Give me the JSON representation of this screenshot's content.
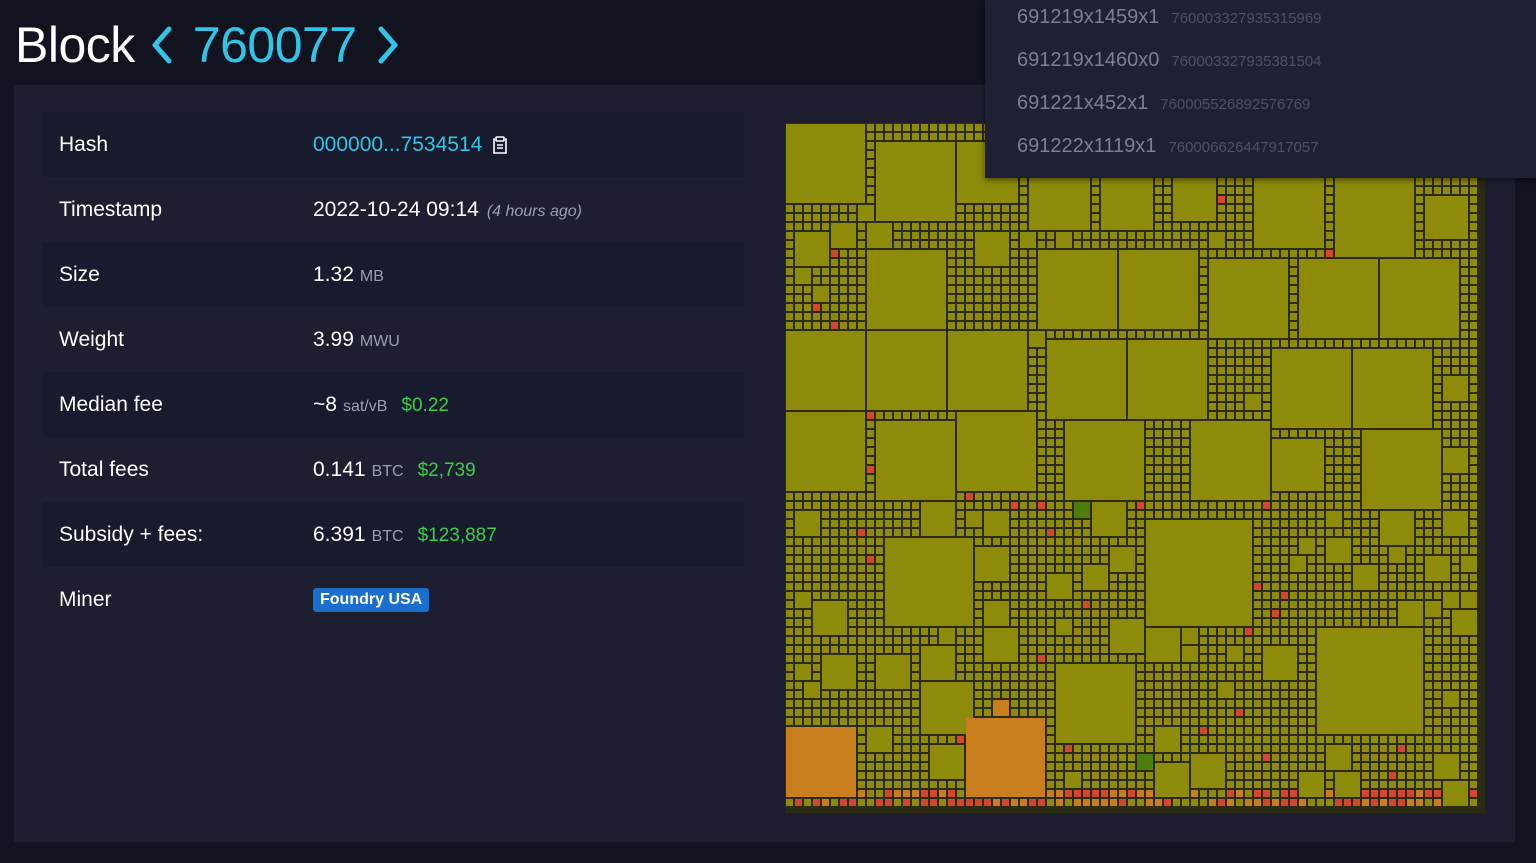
{
  "header": {
    "title_word": "Block",
    "block_number": "760077",
    "prev_icon": "chevron-left-icon",
    "next_icon": "chevron-right-icon"
  },
  "details": {
    "hash": {
      "label": "Hash",
      "value": "000000...7534514",
      "icon": "copy-icon"
    },
    "timestamp": {
      "label": "Timestamp",
      "value": "2022-10-24 09:14",
      "relative": "(4 hours ago)"
    },
    "size": {
      "label": "Size",
      "value": "1.32",
      "unit": "MB"
    },
    "weight": {
      "label": "Weight",
      "value": "3.99",
      "unit": "MWU"
    },
    "median_fee": {
      "label": "Median fee",
      "value": "~8",
      "unit": "sat/vB",
      "usd": "$0.22"
    },
    "total_fees": {
      "label": "Total fees",
      "value": "0.141",
      "unit": "BTC",
      "usd": "$2,739"
    },
    "subsidy": {
      "label": "Subsidy + fees:",
      "value": "6.391",
      "unit": "BTC",
      "usd": "$123,887"
    },
    "miner": {
      "label": "Miner",
      "value": "Foundry USA"
    }
  },
  "colors": {
    "accent": "#2fc5e8",
    "usd": "#3bcc49",
    "badge": "#1a6fce",
    "tx_base": "#8f8b0a",
    "tx_green": "#4d7d0c",
    "tx_orange": "#c87e1c",
    "tx_red": "#d2472e"
  },
  "tooltip": {
    "rows": [
      {
        "id": "691219x1459x1",
        "value": "760003327935315969"
      },
      {
        "id": "691219x1460x0",
        "value": "760003327935381504"
      },
      {
        "id": "691221x452x1",
        "value": "760005526892576769"
      },
      {
        "id": "691222x1119x1",
        "value": "760006626447917057"
      }
    ]
  }
}
